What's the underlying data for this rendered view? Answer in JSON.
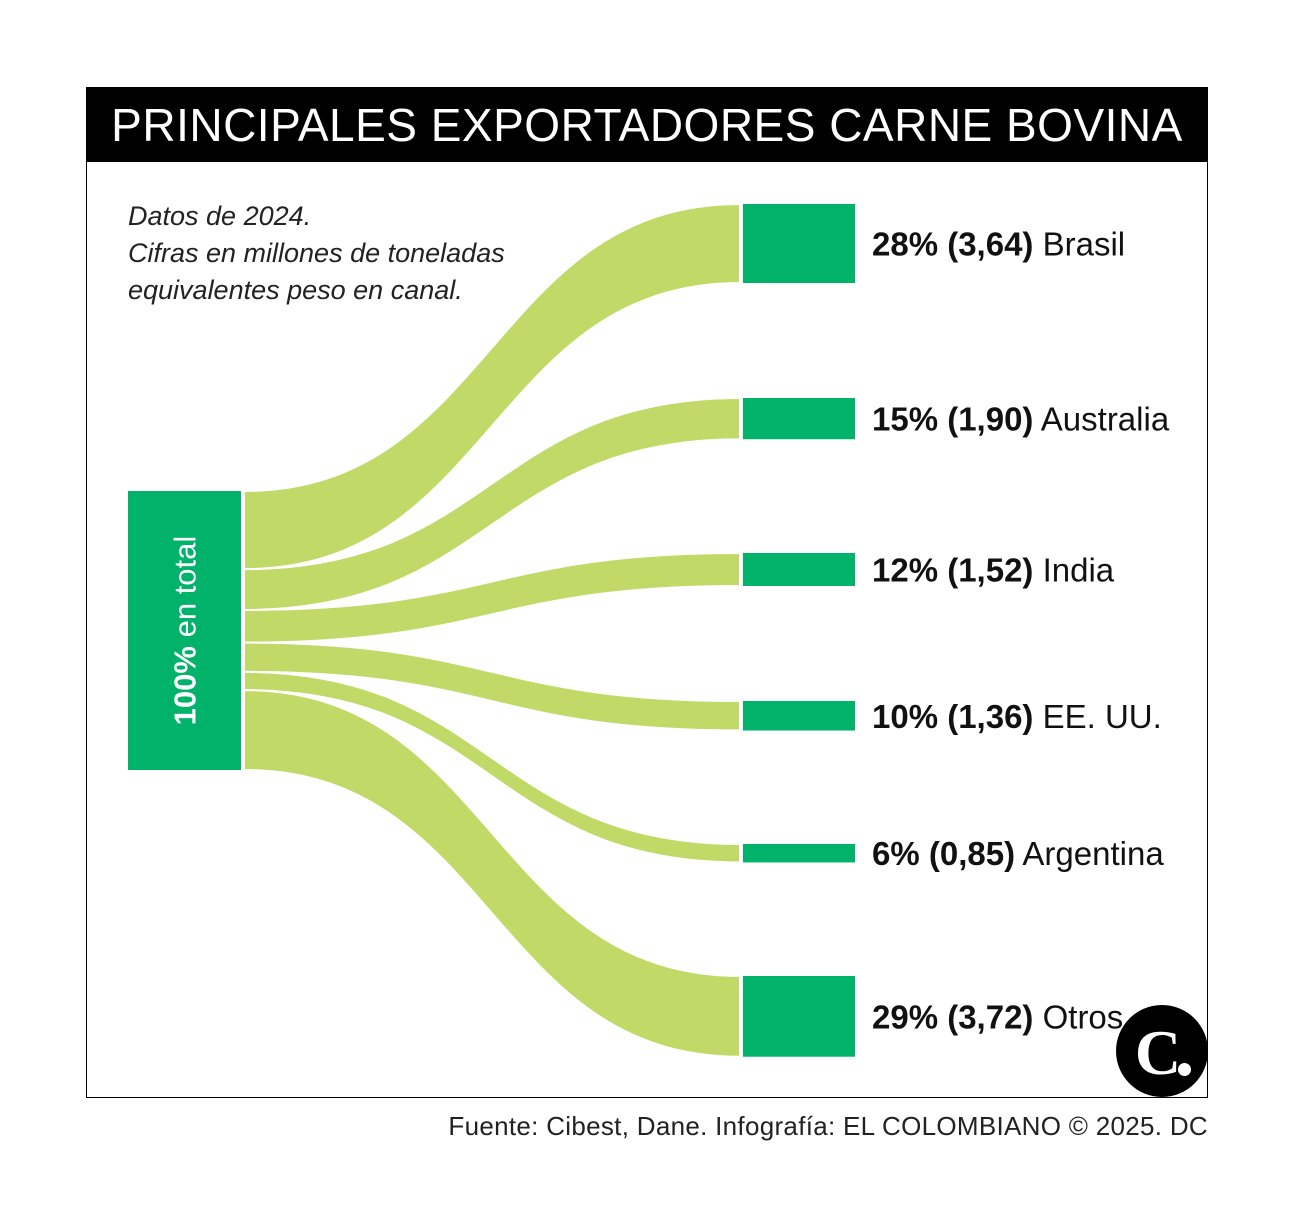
{
  "chart_data": {
    "type": "sankey",
    "title": "PRINCIPALES EXPORTADORES CARNE BOVINA",
    "note": [
      "Datos de 2024.",
      "Cifras en millones de toneladas",
      "equivalentes peso en canal."
    ],
    "source": {
      "label": "100% en total"
    },
    "targets": [
      {
        "pct": "28%",
        "value": 3.64,
        "value_label": "(3,64)",
        "name": "Brasil"
      },
      {
        "pct": "15%",
        "value": 1.9,
        "value_label": "(1,90)",
        "name": "Australia"
      },
      {
        "pct": "12%",
        "value": 1.52,
        "value_label": "(1,52)",
        "name": "India"
      },
      {
        "pct": "10%",
        "value": 1.36,
        "value_label": "(1,36)",
        "name": "EE. UU."
      },
      {
        "pct": "6%",
        "value": 0.85,
        "value_label": "(0,85)",
        "name": "Argentina"
      },
      {
        "pct": "29%",
        "value": 3.72,
        "value_label": "(3,72)",
        "name": "Otros"
      }
    ]
  },
  "colors": {
    "node": "#00b26a",
    "flow": "#c1d966",
    "title_bg": "#000000",
    "title_fg": "#ffffff"
  },
  "footer": {
    "credit": "Fuente: Cibest, Dane. Infografía: EL COLOMBIANO © 2025. DC",
    "logo_letter": "C"
  }
}
